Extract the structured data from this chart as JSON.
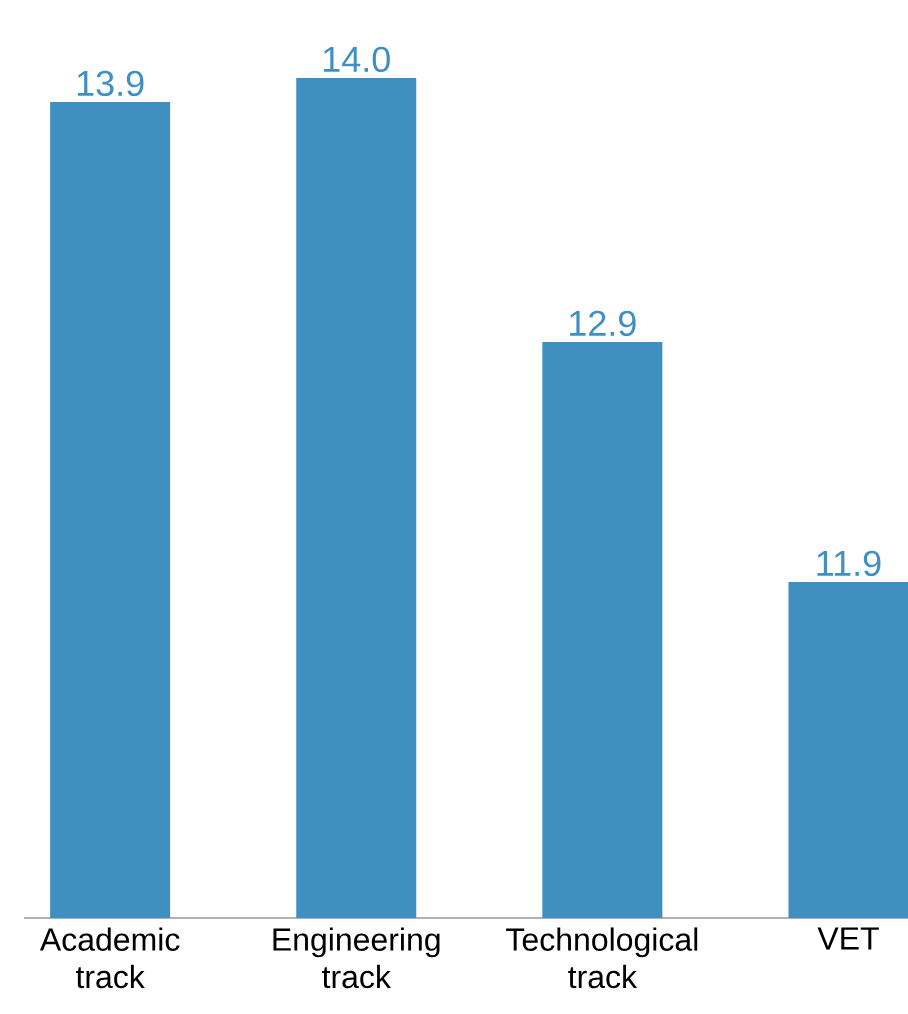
{
  "chart_data": {
    "type": "bar",
    "categories": [
      "Academic track",
      "Engineering track",
      "Technological track",
      "VET"
    ],
    "values": [
      13.9,
      14.0,
      12.9,
      11.9
    ],
    "value_labels": [
      "13.9",
      "14.0",
      "12.9",
      "11.9"
    ],
    "color": "#3f8fc0",
    "ylim": [
      10.5,
      14.0
    ],
    "tick_labels": "x"
  }
}
